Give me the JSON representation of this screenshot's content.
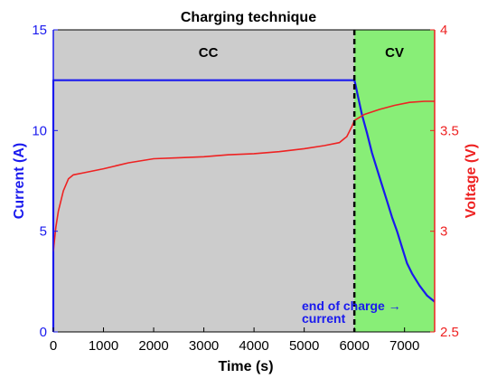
{
  "chart_data": {
    "type": "line",
    "title": "Charging technique",
    "xlabel": "Time (s)",
    "ylabel_left": "Current (A)",
    "ylabel_right": "Voltage (V)",
    "xlim": [
      0,
      7600
    ],
    "ylim_left": [
      0,
      15
    ],
    "ylim_right": [
      2.5,
      4
    ],
    "x_ticks": [
      0,
      1000,
      2000,
      3000,
      4000,
      5000,
      6000,
      7000
    ],
    "y_left_ticks": [
      0,
      5,
      10,
      15
    ],
    "y_right_ticks": [
      2.5,
      3,
      3.5,
      4
    ],
    "regions": [
      {
        "label": "CC",
        "x_start": 0,
        "x_end": 6000,
        "color": "#cccccc"
      },
      {
        "label": "CV",
        "x_start": 6000,
        "x_end": 7600,
        "color": "#88ee77"
      }
    ],
    "boundary_x": 6000,
    "annotation": {
      "line1": "end of charge →",
      "line2": "current"
    },
    "series": [
      {
        "name": "Current",
        "axis": "left",
        "color": "#1a1aee",
        "x": [
          0,
          0,
          20,
          6000,
          6020,
          6080,
          6150,
          6250,
          6350,
          6450,
          6550,
          6650,
          6750,
          6850,
          6950,
          7050,
          7150,
          7300,
          7450,
          7600
        ],
        "y": [
          0,
          12.5,
          12.5,
          12.5,
          12.3,
          11.6,
          10.8,
          9.9,
          8.9,
          8.1,
          7.3,
          6.5,
          5.7,
          5.0,
          4.2,
          3.4,
          2.9,
          2.3,
          1.8,
          1.5
        ]
      },
      {
        "name": "Voltage",
        "axis": "right",
        "color": "#ee2222",
        "x": [
          0,
          50,
          100,
          200,
          300,
          400,
          600,
          1000,
          1500,
          2000,
          2500,
          3000,
          3500,
          4000,
          4500,
          5000,
          5400,
          5700,
          5850,
          5950,
          6000,
          6200,
          6500,
          6800,
          7100,
          7400,
          7600
        ],
        "y": [
          2.9,
          3.02,
          3.1,
          3.2,
          3.26,
          3.28,
          3.29,
          3.31,
          3.34,
          3.36,
          3.365,
          3.37,
          3.38,
          3.385,
          3.395,
          3.41,
          3.425,
          3.44,
          3.47,
          3.52,
          3.55,
          3.58,
          3.605,
          3.625,
          3.64,
          3.645,
          3.645
        ]
      }
    ]
  }
}
